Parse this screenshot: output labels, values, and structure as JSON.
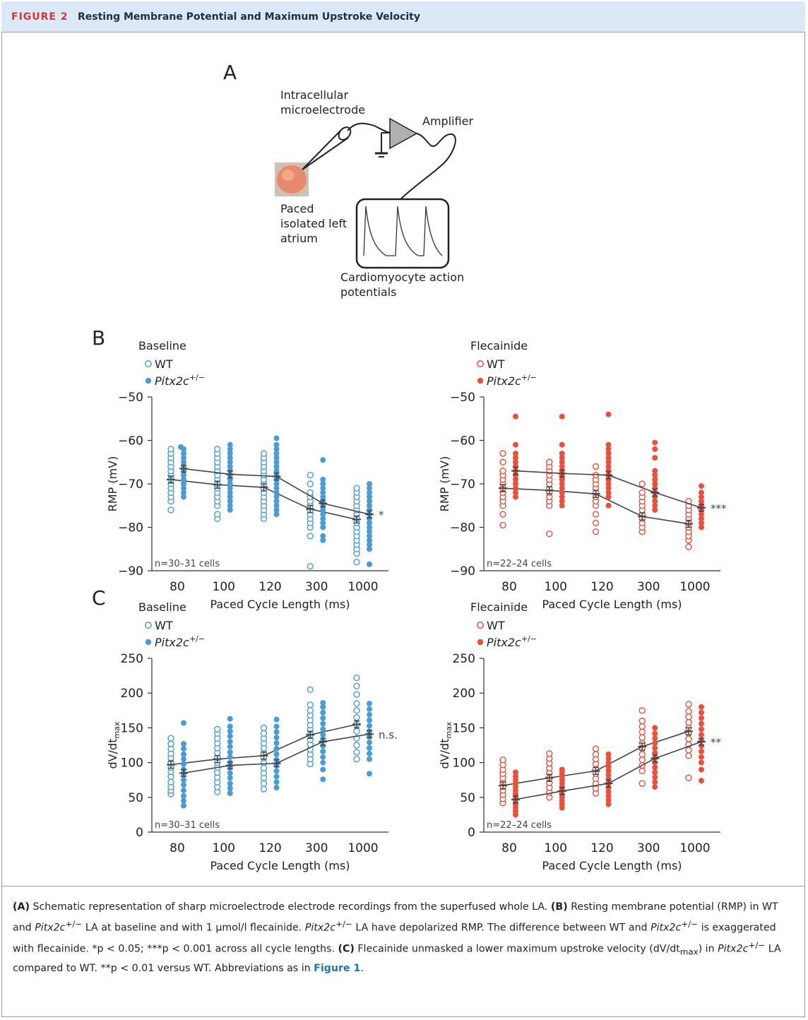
{
  "header": {
    "tag": "FIGURE 2",
    "title": "Resting Membrane Potential and Maximum Upstroke Velocity"
  },
  "panel_a": {
    "letter": "A",
    "electrode_label_1": "Intracellular",
    "electrode_label_2": "microelectrode",
    "amplifier_label": "Amplifier",
    "atrium_label_1": "Paced",
    "atrium_label_2": "isolated left",
    "atrium_label_3": "atrium",
    "ap_label_1": "Cardiomyocyte action",
    "ap_label_2": "potentials"
  },
  "panel_letters": {
    "b": "B",
    "c": "C"
  },
  "legend": {
    "wt": "WT",
    "pitx_base": "Pitx2c",
    "pitx_sup": "+/−"
  },
  "colors": {
    "baseline": "#4c9bd4",
    "flecainide": "#e8503f",
    "mean_line": "#444444"
  },
  "chart_data": [
    {
      "id": "rmp-baseline",
      "type": "scatter",
      "title": "Baseline",
      "xlabel": "Paced Cycle Length (ms)",
      "ylabel": "RMP (mV)",
      "categories": [
        "80",
        "100",
        "120",
        "300",
        "1000"
      ],
      "ylim": [
        -90,
        -50
      ],
      "yticks": [
        -90,
        -80,
        -70,
        -60,
        -50
      ],
      "color": "#4c9bd4",
      "annotation": "n=30–31 cells",
      "significance": "*",
      "series": [
        {
          "name": "WT",
          "means": [
            -69,
            -70.2,
            -70.8,
            -75.8,
            -78.2
          ],
          "points": [
            [
              -62,
              -63,
              -64,
              -65,
              -66,
              -67,
              -68,
              -69,
              -70,
              -71,
              -72,
              -73,
              -74,
              -76
            ],
            [
              -62,
              -63,
              -64,
              -65,
              -66,
              -67,
              -68,
              -69,
              -70,
              -71,
              -72,
              -73,
              -74,
              -75,
              -77,
              -78
            ],
            [
              -63,
              -64,
              -65,
              -66,
              -67,
              -68,
              -69,
              -70,
              -71,
              -72,
              -73,
              -74,
              -75,
              -76,
              -77,
              -78
            ],
            [
              -68,
              -70,
              -72,
              -73,
              -74,
              -75,
              -76,
              -77,
              -78,
              -79,
              -80,
              -82,
              -89
            ],
            [
              -71,
              -72,
              -73,
              -74,
              -75,
              -76,
              -77,
              -78,
              -79,
              -80,
              -81,
              -82,
              -83,
              -84,
              -85,
              -86,
              -88
            ]
          ]
        },
        {
          "name": "Pitx2c+/−",
          "means": [
            -66.5,
            -67.8,
            -68.3,
            -74.5,
            -77
          ],
          "points": [
            [
              -61.5,
              -62,
              -63,
              -64,
              -65,
              -66,
              -67,
              -68,
              -69,
              -70,
              -71,
              -72,
              -73
            ],
            [
              -61,
              -62,
              -63,
              -64,
              -65,
              -66,
              -67,
              -68,
              -69,
              -70,
              -71,
              -72,
              -73,
              -74,
              -75,
              -76
            ],
            [
              -59.5,
              -61,
              -62,
              -63,
              -64,
              -65,
              -66,
              -67,
              -68,
              -69,
              -70,
              -71,
              -72,
              -73,
              -74,
              -75,
              -76,
              -77
            ],
            [
              -64.5,
              -69,
              -70,
              -71,
              -72,
              -73,
              -74,
              -75,
              -76,
              -77,
              -78,
              -79,
              -80,
              -82,
              -83
            ],
            [
              -70,
              -71,
              -72,
              -73,
              -74,
              -75,
              -76,
              -77,
              -78,
              -79,
              -80,
              -81,
              -82,
              -83,
              -84,
              -85,
              -88.5
            ]
          ]
        }
      ]
    },
    {
      "id": "rmp-flecainide",
      "type": "scatter",
      "title": "Flecainide",
      "xlabel": "Paced Cycle Length (ms)",
      "ylabel": "RMP (mV)",
      "categories": [
        "80",
        "100",
        "120",
        "300",
        "1000"
      ],
      "ylim": [
        -90,
        -50
      ],
      "yticks": [
        -90,
        -80,
        -70,
        -60,
        -50
      ],
      "color": "#e8503f",
      "annotation": "n=22–24 cells",
      "significance": "***",
      "series": [
        {
          "name": "WT",
          "means": [
            -71,
            -71.5,
            -72.3,
            -77.5,
            -79.2
          ],
          "points": [
            [
              -63,
              -65,
              -67,
              -68,
              -69,
              -70,
              -71,
              -72,
              -73,
              -74,
              -75,
              -77,
              -79.5
            ],
            [
              -65,
              -66,
              -67,
              -68,
              -69,
              -70,
              -71,
              -72,
              -73,
              -74,
              -75,
              -81.5
            ],
            [
              -66,
              -68,
              -69,
              -70,
              -71,
              -72,
              -73,
              -74,
              -75,
              -77,
              -79,
              -81
            ],
            [
              -70,
              -72,
              -73,
              -74,
              -75,
              -76,
              -77,
              -78,
              -79,
              -80,
              -81
            ],
            [
              -74,
              -75,
              -76,
              -77,
              -78,
              -79,
              -80,
              -81,
              -82,
              -83,
              -84.5
            ]
          ]
        },
        {
          "name": "Pitx2c+/−",
          "means": [
            -67,
            -67.6,
            -68,
            -72,
            -75.5
          ],
          "points": [
            [
              -54.5,
              -61,
              -63,
              -64,
              -65,
              -66,
              -67,
              -68,
              -69,
              -70,
              -71,
              -72,
              -73
            ],
            [
              -54.5,
              -61,
              -63,
              -64,
              -65,
              -66,
              -67,
              -68,
              -69,
              -70,
              -71,
              -72,
              -73,
              -74,
              -75
            ],
            [
              -54,
              -61,
              -62,
              -63,
              -64,
              -65,
              -66,
              -67,
              -68,
              -69,
              -70,
              -71,
              -72,
              -73,
              -75
            ],
            [
              -60.5,
              -62,
              -64,
              -67,
              -68,
              -69,
              -70,
              -71,
              -72,
              -73,
              -74,
              -75,
              -76
            ],
            [
              -70.5,
              -72,
              -73,
              -74,
              -75,
              -76,
              -77,
              -78,
              -79,
              -80
            ]
          ]
        }
      ]
    },
    {
      "id": "dvdt-baseline",
      "type": "scatter",
      "title": "Baseline",
      "xlabel": "Paced Cycle Length (ms)",
      "ylabel": "dV/dt",
      "ylabel_sub": "max",
      "categories": [
        "80",
        "100",
        "120",
        "300",
        "1000"
      ],
      "ylim": [
        0,
        250
      ],
      "yticks": [
        0,
        50,
        100,
        150,
        200,
        250
      ],
      "color": "#4c9bd4",
      "annotation": "n=30–31 cells",
      "significance": "n.s.",
      "series": [
        {
          "name": "WT",
          "means": [
            97,
            105,
            110,
            140,
            155
          ],
          "points": [
            [
              55,
              60,
              65,
              72,
              80,
              87,
              93,
              100,
              107,
              113,
              120,
              127,
              135
            ],
            [
              58,
              65,
              72,
              79,
              86,
              93,
              100,
              107,
              114,
              121,
              128,
              135,
              142,
              148
            ],
            [
              62,
              70,
              78,
              85,
              92,
              100,
              107,
              114,
              121,
              128,
              135,
              142,
              150
            ],
            [
              98,
              105,
              112,
              119,
              126,
              133,
              140,
              147,
              154,
              161,
              168,
              175,
              183,
              205
            ],
            [
              105,
              115,
              125,
              135,
              145,
              155,
              165,
              175,
              185,
              198,
              210,
              222
            ]
          ]
        },
        {
          "name": "Pitx2c+/−",
          "means": [
            85,
            96,
            99,
            130,
            141
          ],
          "points": [
            [
              38,
              45,
              52,
              60,
              68,
              75,
              83,
              90,
              98,
              105,
              112,
              120,
              127,
              157
            ],
            [
              56,
              63,
              70,
              78,
              85,
              93,
              100,
              108,
              115,
              123,
              130,
              138,
              145,
              152,
              163
            ],
            [
              64,
              72,
              80,
              88,
              96,
              104,
              112,
              120,
              128,
              136,
              144,
              152,
              162
            ],
            [
              76,
              90,
              100,
              108,
              116,
              124,
              132,
              140,
              148,
              156,
              164,
              172,
              180,
              186
            ],
            [
              84,
              105,
              113,
              121,
              129,
              137,
              145,
              153,
              161,
              169,
              177,
              185
            ]
          ]
        }
      ]
    },
    {
      "id": "dvdt-flecainide",
      "type": "scatter",
      "title": "Flecainide",
      "xlabel": "Paced Cycle Length (ms)",
      "ylabel": "dV/dt",
      "ylabel_sub": "max",
      "categories": [
        "80",
        "100",
        "120",
        "300",
        "1000"
      ],
      "ylim": [
        0,
        250
      ],
      "yticks": [
        0,
        50,
        100,
        150,
        200,
        250
      ],
      "color": "#e8503f",
      "annotation": "n=22–24 cells",
      "significance": "**",
      "series": [
        {
          "name": "WT",
          "means": [
            67,
            78,
            88,
            123,
            145
          ],
          "points": [
            [
              42,
              48,
              54,
              60,
              66,
              72,
              78,
              84,
              90,
              97,
              104
            ],
            [
              50,
              57,
              64,
              71,
              78,
              85,
              92,
              99,
              106,
              113
            ],
            [
              56,
              63,
              70,
              77,
              84,
              91,
              98,
              105,
              112,
              120
            ],
            [
              70,
              88,
              96,
              104,
              112,
              120,
              128,
              136,
              144,
              152,
              160,
              175
            ],
            [
              78,
              110,
              118,
              126,
              134,
              142,
              150,
              158,
              166,
              174,
              184
            ]
          ]
        },
        {
          "name": "Pitx2c+/−",
          "means": [
            47,
            59,
            70,
            106,
            130
          ],
          "points": [
            [
              25,
              30,
              35,
              40,
              45,
              50,
              55,
              60,
              65,
              70,
              75,
              80,
              86
            ],
            [
              35,
              40,
              45,
              50,
              55,
              60,
              65,
              70,
              75,
              80,
              85,
              90
            ],
            [
              40,
              46,
              52,
              58,
              64,
              70,
              76,
              82,
              88,
              94,
              100,
              106,
              112
            ],
            [
              65,
              72,
              79,
              86,
              93,
              100,
              107,
              114,
              121,
              128,
              135,
              142,
              150
            ],
            [
              74,
              90,
              100,
              108,
              116,
              124,
              132,
              140,
              148,
              156,
              164,
              172,
              180
            ]
          ]
        }
      ]
    }
  ],
  "caption": {
    "a_label": "(A)",
    "a_text": " Schematic representation of sharp microelectrode electrode recordings from the superfused whole LA. ",
    "b_label": "(B)",
    "b_text_1": " Resting membrane potential (RMP) in WT and ",
    "gene": "Pitx2c",
    "gene_sup": "+/−",
    "b_text_2": " LA at baseline and with 1 μmol/l flecainide. ",
    "b_text_3": " LA have depolarized RMP. The difference between WT and ",
    "b_text_4": " is exaggerated with flecainide. *p < 0.05; ***p < 0.001 across all cycle lengths. ",
    "c_label": "(C)",
    "c_text_1": " Flecainide unmasked a lower maximum upstroke velocity (dV/dt",
    "c_sub": "max",
    "c_text_2": ") in ",
    "c_text_3": " LA compared to WT. **p < 0.01 versus WT. Abbreviations as in ",
    "link": "Figure 1",
    "end": "."
  }
}
